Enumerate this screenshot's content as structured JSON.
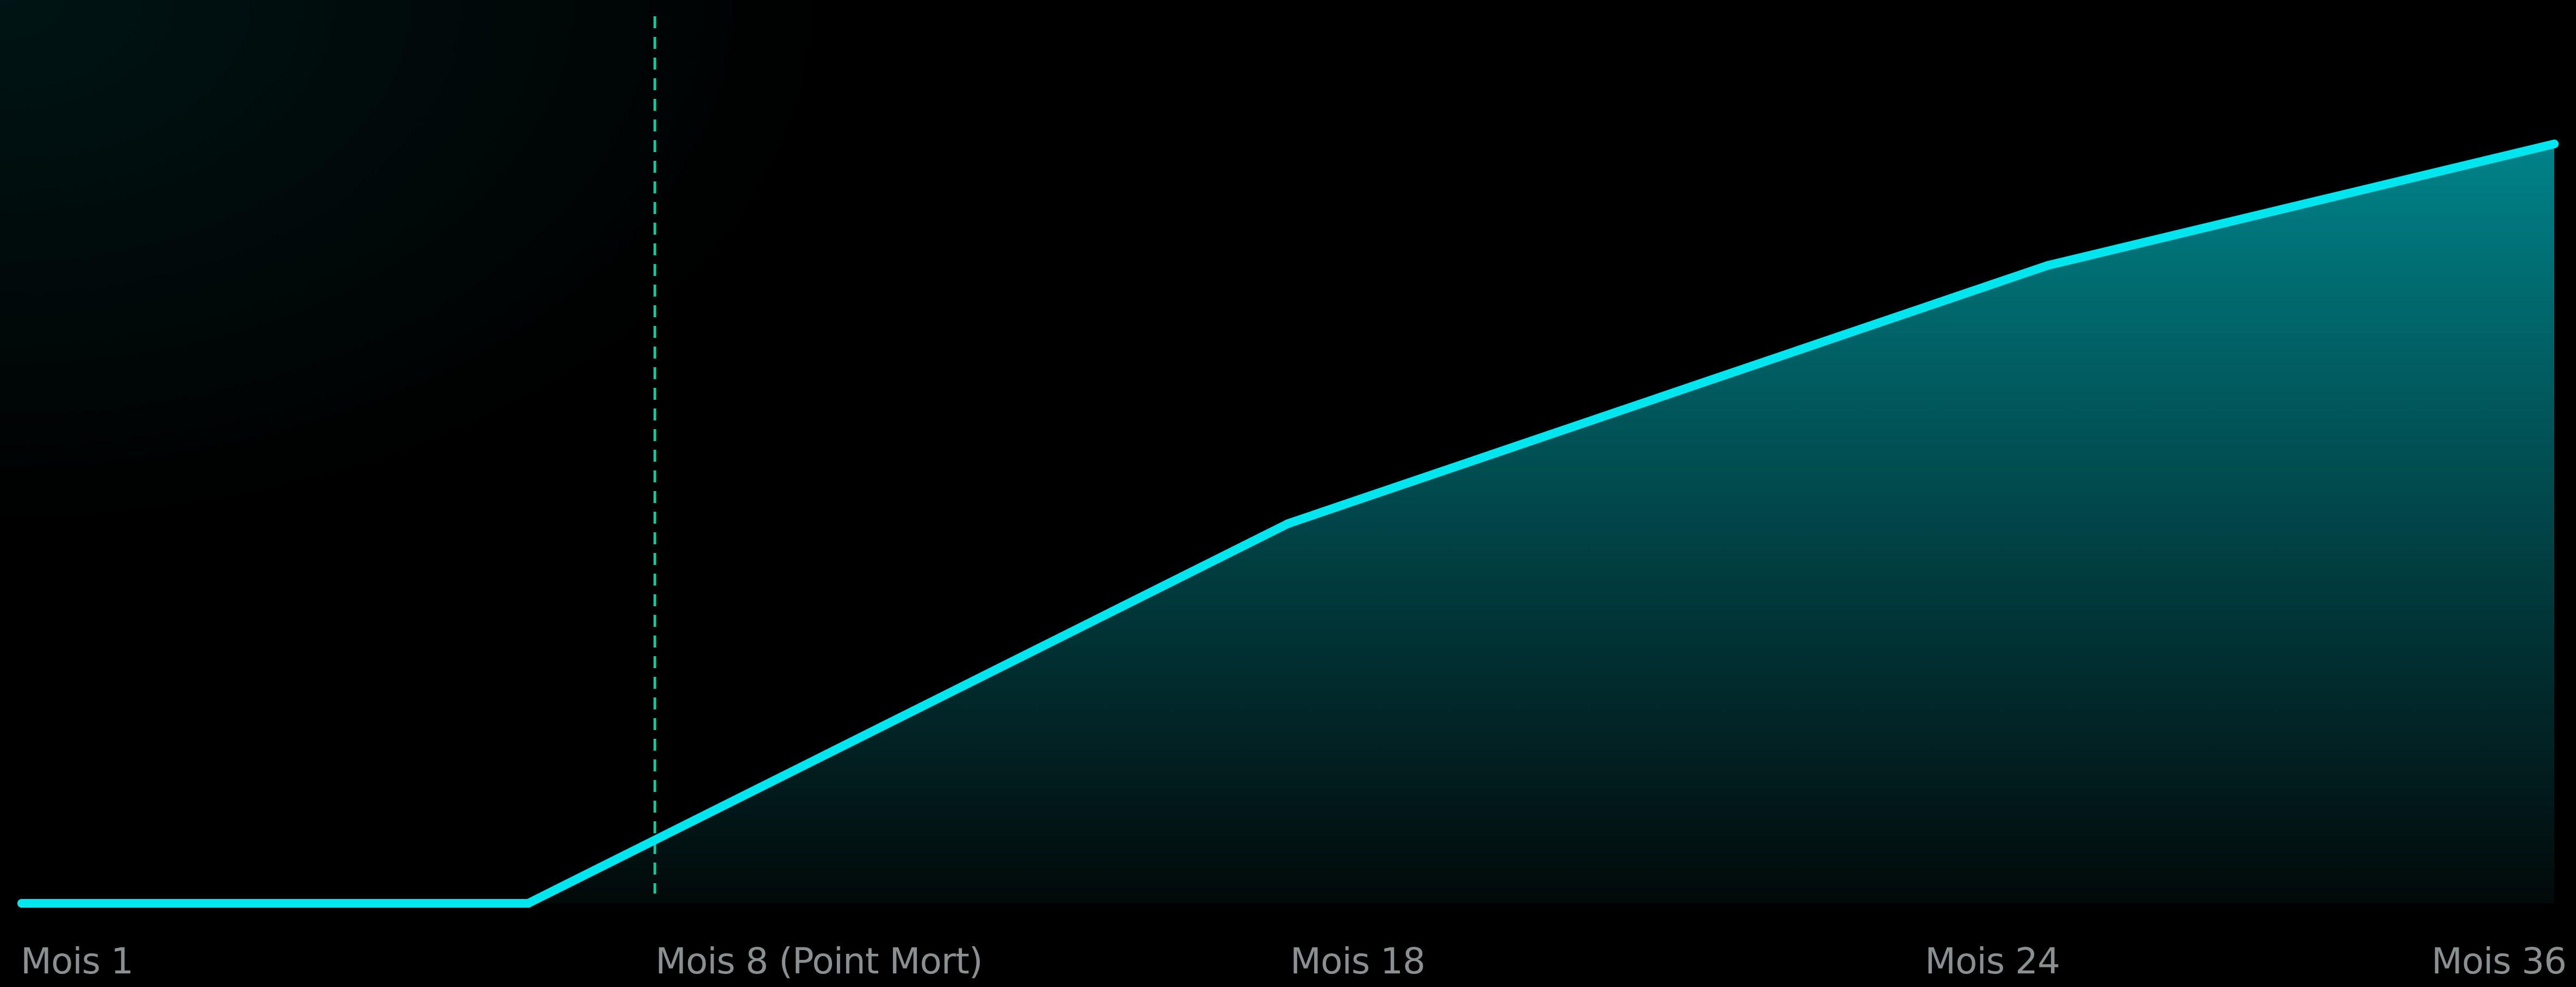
{
  "chart_data": {
    "type": "area",
    "title": "",
    "xlabel": "",
    "ylabel": "",
    "x_categories": [
      "Mois 1",
      "Mois 8 (Point Mort)",
      "Mois 18",
      "Mois 24",
      "Mois 36"
    ],
    "x_positions": [
      1,
      8,
      18,
      24,
      36
    ],
    "series": [
      {
        "points": [
          {
            "x": 1,
            "y": 0
          },
          {
            "x": 9,
            "y": 0
          },
          {
            "x": 21,
            "y": 50
          },
          {
            "x": 33,
            "y": 84
          },
          {
            "x": 41,
            "y": 100
          }
        ]
      }
    ],
    "xlim": [
      1,
      41
    ],
    "ylim": [
      0,
      100
    ],
    "vertical_marker": {
      "x": 11,
      "style": "dashed"
    },
    "grid": false,
    "legend": "none",
    "colors": {
      "background": "#000000",
      "line": "#00E5EE",
      "fill_top": "#008A90",
      "fill_bottom": "#020A0A",
      "marker": "#19C79A",
      "tick_text": "#8A8F91"
    }
  }
}
